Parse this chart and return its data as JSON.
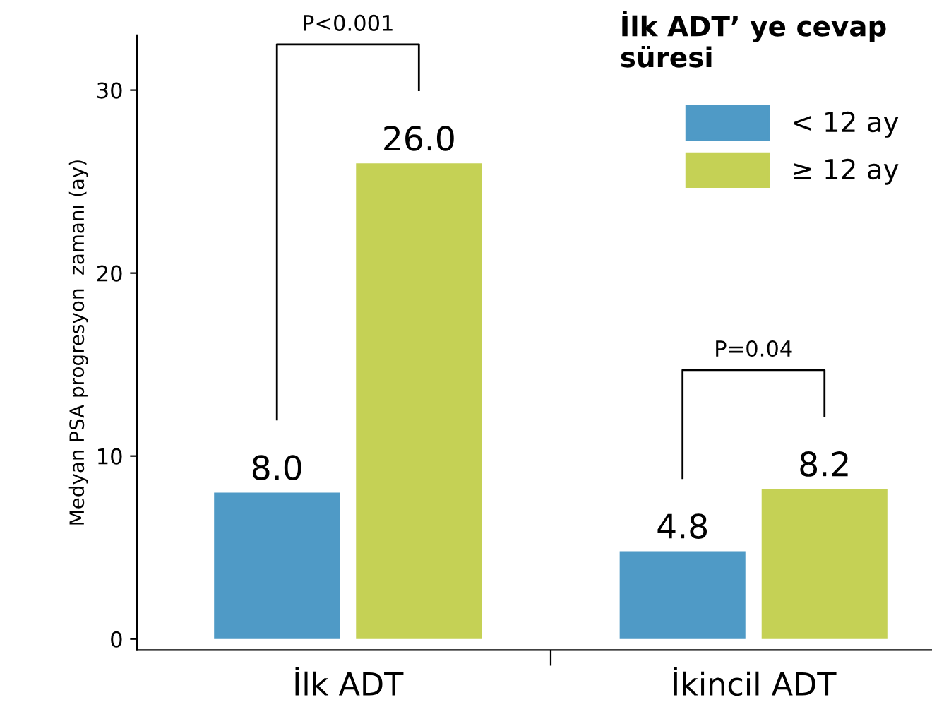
{
  "chart_data": {
    "type": "bar",
    "ylabel": "Medyan PSA progresyon  zamanı (ay)",
    "categories": [
      "İlk ADT",
      "İkincil ADT"
    ],
    "series": [
      {
        "name": "< 12 ay",
        "color": "#4f9ac6",
        "values": [
          8.0,
          4.8
        ],
        "value_labels": [
          "8.0",
          "4.8"
        ]
      },
      {
        "name": "≥ 12 ay",
        "color": "#c5d155",
        "values": [
          26.0,
          8.2
        ],
        "value_labels": [
          "26.0",
          "8.2"
        ]
      }
    ],
    "ylim": [
      -0.6,
      33
    ],
    "yticks": [
      0,
      10,
      20,
      30
    ],
    "grid": false,
    "legend": "top right",
    "legend_title": "İlk ADT’ ye cevap süresi",
    "annotations": [
      "P<0.001",
      "P=0.04"
    ]
  }
}
